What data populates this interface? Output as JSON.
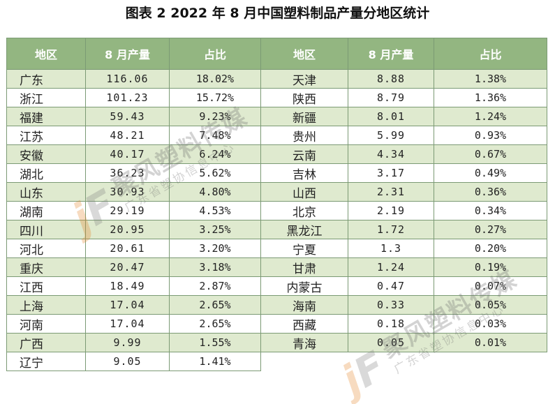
{
  "title": "图表 2 2022 年 8 月中国塑料制品产量分地区统计",
  "headers": {
    "region": "地区",
    "output": "8 月产量",
    "share": "占比"
  },
  "left_rows": [
    {
      "region": "广东",
      "output": "116.06",
      "share": "18.02%"
    },
    {
      "region": "浙江",
      "output": "101.23",
      "share": "15.72%"
    },
    {
      "region": "福建",
      "output": "59.43",
      "share": "9.23%"
    },
    {
      "region": "江苏",
      "output": "48.21",
      "share": "7.48%"
    },
    {
      "region": "安徽",
      "output": "40.17",
      "share": "6.24%"
    },
    {
      "region": "湖北",
      "output": "36.23",
      "share": "5.62%"
    },
    {
      "region": "山东",
      "output": "30.93",
      "share": "4.80%"
    },
    {
      "region": "湖南",
      "output": "29.19",
      "share": "4.53%"
    },
    {
      "region": "四川",
      "output": "20.95",
      "share": "3.25%"
    },
    {
      "region": "河北",
      "output": "20.61",
      "share": "3.20%"
    },
    {
      "region": "重庆",
      "output": "20.47",
      "share": "3.18%"
    },
    {
      "region": "江西",
      "output": "18.49",
      "share": "2.87%"
    },
    {
      "region": "上海",
      "output": "17.04",
      "share": "2.65%"
    },
    {
      "region": "河南",
      "output": "17.04",
      "share": "2.65%"
    },
    {
      "region": "广西",
      "output": "9.99",
      "share": "1.55%"
    },
    {
      "region": "辽宁",
      "output": "9.05",
      "share": "1.41%"
    }
  ],
  "right_rows": [
    {
      "region": "天津",
      "output": "8.88",
      "share": "1.38%"
    },
    {
      "region": "陕西",
      "output": "8.79",
      "share": "1.36%"
    },
    {
      "region": "新疆",
      "output": "8.01",
      "share": "1.24%"
    },
    {
      "region": "贵州",
      "output": "5.99",
      "share": "0.93%"
    },
    {
      "region": "云南",
      "output": "4.34",
      "share": "0.67%"
    },
    {
      "region": "吉林",
      "output": "3.17",
      "share": "0.49%"
    },
    {
      "region": "山西",
      "output": "2.31",
      "share": "0.36%"
    },
    {
      "region": "北京",
      "output": "2.19",
      "share": "0.34%"
    },
    {
      "region": "黑龙江",
      "output": "1.72",
      "share": "0.27%"
    },
    {
      "region": "宁夏",
      "output": "1.3",
      "share": "0.20%"
    },
    {
      "region": "甘肃",
      "output": "1.24",
      "share": "0.19%"
    },
    {
      "region": "内蒙古",
      "output": "0.47",
      "share": "0.07%"
    },
    {
      "region": "海南",
      "output": "0.33",
      "share": "0.05%"
    },
    {
      "region": "西藏",
      "output": "0.18",
      "share": "0.03%"
    },
    {
      "region": "青海",
      "output": "0.05",
      "share": "0.01%"
    }
  ],
  "watermark": {
    "logo_j": "j",
    "logo_f": "F",
    "name": "聚风塑料传媒",
    "subtitle": "广东省塑协信息中心"
  },
  "colors": {
    "header_bg": "#93b681",
    "stripe_bg": "#dfeacf",
    "border": "#7b9a74"
  }
}
